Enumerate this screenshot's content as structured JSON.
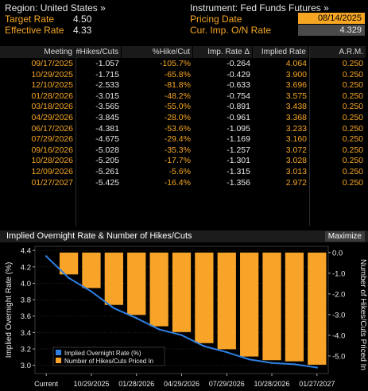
{
  "header": {
    "region": "Region: United States »",
    "instrument": "Instrument: Fed Funds Futures »",
    "target_rate_label": "Target Rate",
    "target_rate_value": "4.50",
    "effective_rate_label": "Effective Rate",
    "effective_rate_value": "4.33",
    "pricing_date_label": "Pricing Date",
    "pricing_date_value": "08/14/2025",
    "cur_imp_label": "Cur. Imp. O/N Rate",
    "cur_imp_value": "4.329"
  },
  "table": {
    "columns": [
      "Meeting",
      "#Hikes/Cuts",
      "%Hike/Cut",
      "Imp. Rate Δ",
      "Implied Rate",
      "A.R.M."
    ],
    "rows": [
      [
        "09/17/2025",
        "-1.057",
        "-105.7%",
        "-0.264",
        "4.064",
        "0.250"
      ],
      [
        "10/29/2025",
        "-1.715",
        "-65.8%",
        "-0.429",
        "3.900",
        "0.250"
      ],
      [
        "12/10/2025",
        "-2.533",
        "-81.8%",
        "-0.633",
        "3.696",
        "0.250"
      ],
      [
        "01/28/2026",
        "-3.015",
        "-48.2%",
        "-0.754",
        "3.575",
        "0.250"
      ],
      [
        "03/18/2026",
        "-3.565",
        "-55.0%",
        "-0.891",
        "3.438",
        "0.250"
      ],
      [
        "04/29/2026",
        "-3.845",
        "-28.0%",
        "-0.961",
        "3.368",
        "0.250"
      ],
      [
        "06/17/2026",
        "-4.381",
        "-53.6%",
        "-1.095",
        "3.233",
        "0.250"
      ],
      [
        "07/29/2026",
        "-4.675",
        "-29.4%",
        "-1.169",
        "3.160",
        "0.250"
      ],
      [
        "09/16/2026",
        "-5.028",
        "-35.3%",
        "-1.257",
        "3.072",
        "0.250"
      ],
      [
        "10/28/2026",
        "-5.205",
        "-17.7%",
        "-1.301",
        "3.028",
        "0.250"
      ],
      [
        "12/09/2026",
        "-5.261",
        "-5.6%",
        "-1.315",
        "3.013",
        "0.250"
      ],
      [
        "01/27/2027",
        "-5.425",
        "-16.4%",
        "-1.356",
        "2.972",
        "0.250"
      ]
    ]
  },
  "chart_panel": {
    "title": "Implied Overnight Rate & Number of Hikes/Cuts",
    "maximize_label": "Maximize"
  },
  "chart_data": {
    "type": "bar",
    "categories": [
      "Current",
      "09/17/2025",
      "10/29/2025",
      "12/10/2025",
      "01/28/2026",
      "03/18/2026",
      "04/29/2026",
      "06/17/2026",
      "07/29/2026",
      "09/16/2026",
      "10/28/2026",
      "12/09/2026",
      "01/27/2027"
    ],
    "x_tick_labels": [
      "Current",
      "10/29/2025",
      "01/28/2026",
      "04/29/2026",
      "07/29/2026",
      "10/28/2026",
      "01/27/2027"
    ],
    "series": [
      {
        "name": "Implied Overnight Rate (%)",
        "type": "line",
        "axis": "left",
        "color": "#2f7fe0",
        "values": [
          4.329,
          4.064,
          3.9,
          3.696,
          3.575,
          3.438,
          3.368,
          3.233,
          3.16,
          3.072,
          3.028,
          3.013,
          2.972
        ]
      },
      {
        "name": "Number of Hikes/Cuts Priced In",
        "type": "bar",
        "axis": "right",
        "color": "#f7a428",
        "values": [
          0,
          -1.057,
          -1.715,
          -2.533,
          -3.015,
          -3.565,
          -3.845,
          -4.381,
          -4.675,
          -5.028,
          -5.205,
          -5.261,
          -5.425
        ]
      }
    ],
    "ylabel_left": "Implied Overnight Rate (%)",
    "ylabel_right": "Number of Hikes/Cuts Priced In",
    "ylim_left": [
      2.9,
      4.45
    ],
    "ylim_right": [
      -5.85,
      0.3
    ],
    "left_ticks": [
      "4.4",
      "4.2",
      "4.0",
      "3.8",
      "3.6",
      "3.4",
      "3.2",
      "3.0"
    ],
    "right_ticks": [
      "0.0",
      "-1.0",
      "-2.0",
      "-3.0",
      "-4.0",
      "-5.0"
    ],
    "legend_position": "bottom-left"
  }
}
